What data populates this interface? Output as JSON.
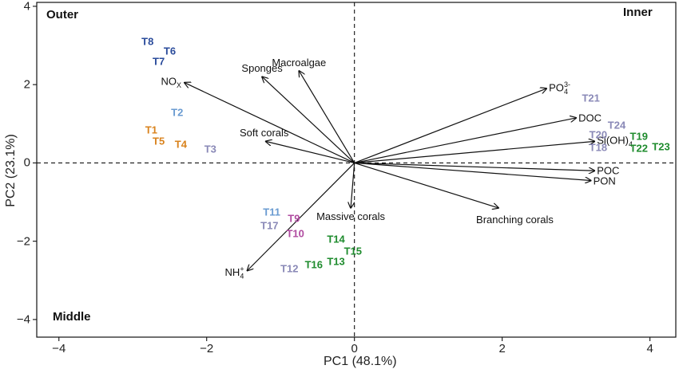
{
  "chart_data": {
    "type": "biplot",
    "xlabel": "PC1 (48.1%)",
    "ylabel": "PC2 (23.1%)",
    "xlim": [
      -4.3,
      4.35
    ],
    "ylim": [
      -4.45,
      4.1
    ],
    "xticks": [
      -4,
      -2,
      0,
      2,
      4
    ],
    "yticks": [
      -4,
      -2,
      0,
      2,
      4
    ],
    "grid": false,
    "reference_lines": [
      "x=0",
      "y=0"
    ],
    "group_labels": [
      {
        "label": "Outer",
        "corner": "top-left"
      },
      {
        "label": "Inner",
        "corner": "top-right"
      },
      {
        "label": "Middle",
        "corner": "bottom-left"
      }
    ],
    "colors": {
      "navy": "#2a4b9b",
      "lightblue": "#6a9bd1",
      "orange": "#d9831e",
      "grey": "#8a89b7",
      "magenta": "#b04ca0",
      "green": "#1f8c2e"
    },
    "vectors": [
      {
        "name": "NOx",
        "base": "NO",
        "sub": "X",
        "sup": "",
        "x": -2.3,
        "y": 2.05
      },
      {
        "name": "Sponges",
        "base": "Sponges",
        "sub": "",
        "sup": "",
        "x": -1.25,
        "y": 2.2
      },
      {
        "name": "Macroalgae",
        "base": "Macroalgae",
        "sub": "",
        "sup": "",
        "x": -0.75,
        "y": 2.35
      },
      {
        "name": "Soft corals",
        "base": "Soft corals",
        "sub": "",
        "sup": "",
        "x": -1.2,
        "y": 0.55
      },
      {
        "name": "PO4 3-",
        "base": "PO",
        "sub": "4",
        "sup": "3-",
        "x": 2.6,
        "y": 1.9
      },
      {
        "name": "DOC",
        "base": "DOC",
        "sub": "",
        "sup": "",
        "x": 3.0,
        "y": 1.15
      },
      {
        "name": "Si(OH)4",
        "base": "Si(OH)",
        "sub": "4",
        "sup": "",
        "x": 3.25,
        "y": 0.55
      },
      {
        "name": "POC",
        "base": "POC",
        "sub": "",
        "sup": "",
        "x": 3.25,
        "y": -0.2
      },
      {
        "name": "PON",
        "base": "PON",
        "sub": "",
        "sup": "",
        "x": 3.2,
        "y": -0.45
      },
      {
        "name": "Branching corals",
        "base": "Branching corals",
        "sub": "",
        "sup": "",
        "x": 1.95,
        "y": -1.15
      },
      {
        "name": "Massive corals",
        "base": "Massive corals",
        "sub": "",
        "sup": "",
        "x": -0.05,
        "y": -1.15
      },
      {
        "name": "NH4+",
        "base": "NH",
        "sub": "4",
        "sup": "+",
        "x": -1.45,
        "y": -2.75
      }
    ],
    "sites": [
      {
        "label": "T8",
        "x": -2.8,
        "y": 3.1,
        "color": "navy"
      },
      {
        "label": "T6",
        "x": -2.5,
        "y": 2.85,
        "color": "navy"
      },
      {
        "label": "T7",
        "x": -2.65,
        "y": 2.6,
        "color": "navy"
      },
      {
        "label": "T2",
        "x": -2.4,
        "y": 1.3,
        "color": "lightblue"
      },
      {
        "label": "T1",
        "x": -2.75,
        "y": 0.85,
        "color": "orange"
      },
      {
        "label": "T5",
        "x": -2.65,
        "y": 0.55,
        "color": "orange"
      },
      {
        "label": "T4",
        "x": -2.35,
        "y": 0.48,
        "color": "orange"
      },
      {
        "label": "T3",
        "x": -1.95,
        "y": 0.35,
        "color": "grey"
      },
      {
        "label": "T21",
        "x": 3.2,
        "y": 1.65,
        "color": "grey"
      },
      {
        "label": "T24",
        "x": 3.55,
        "y": 0.97,
        "color": "grey"
      },
      {
        "label": "T20",
        "x": 3.3,
        "y": 0.72,
        "color": "grey"
      },
      {
        "label": "T18",
        "x": 3.3,
        "y": 0.4,
        "color": "grey"
      },
      {
        "label": "T19",
        "x": 3.85,
        "y": 0.68,
        "color": "green"
      },
      {
        "label": "T22",
        "x": 3.85,
        "y": 0.38,
        "color": "green"
      },
      {
        "label": "T23",
        "x": 4.15,
        "y": 0.42,
        "color": "green"
      },
      {
        "label": "T11",
        "x": -1.12,
        "y": -1.25,
        "color": "lightblue"
      },
      {
        "label": "T9",
        "x": -0.82,
        "y": -1.42,
        "color": "magenta"
      },
      {
        "label": "T17",
        "x": -1.15,
        "y": -1.6,
        "color": "grey"
      },
      {
        "label": "T10",
        "x": -0.8,
        "y": -1.8,
        "color": "magenta"
      },
      {
        "label": "T14",
        "x": -0.25,
        "y": -1.95,
        "color": "green"
      },
      {
        "label": "T15",
        "x": -0.02,
        "y": -2.25,
        "color": "green"
      },
      {
        "label": "T13",
        "x": -0.25,
        "y": -2.52,
        "color": "green"
      },
      {
        "label": "T16",
        "x": -0.55,
        "y": -2.6,
        "color": "green"
      },
      {
        "label": "T12",
        "x": -0.88,
        "y": -2.7,
        "color": "grey"
      }
    ]
  }
}
